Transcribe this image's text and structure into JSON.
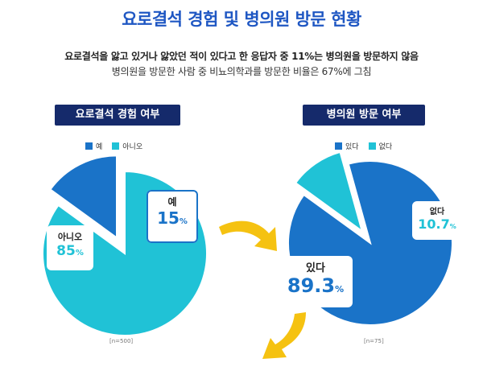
{
  "title_part1": "요로결석 경험 및",
  "title_part2": "병의원 방문 현황",
  "subtitle_line1": "요로결석을 앓고 있거나 앓았던 적이 있다고 한 응답자 중 11%는 병의원을 방문하지 않음",
  "subtitle_line2": "병의원을 방문한 사람 중 비뇨의학과를 방문한 비율은 67%에 그침",
  "colors": {
    "dark_blue": "#1a73c8",
    "cyan": "#20c2d6",
    "navy": "#152a6b",
    "arrow": "#f5c211"
  },
  "chart_data": [
    {
      "type": "pie",
      "title": "요로결석 경험 여부",
      "legend": [
        "예",
        "아니오"
      ],
      "slices": [
        {
          "label": "예",
          "value": 15,
          "display": "15",
          "unit": "%",
          "color": "#1a73c8"
        },
        {
          "label": "아니오",
          "value": 85,
          "display": "85",
          "unit": "%",
          "color": "#20c2d6"
        }
      ],
      "n_note": "[n=500]"
    },
    {
      "type": "pie",
      "title": "병의원 방문 여부",
      "legend": [
        "있다",
        "없다"
      ],
      "slices": [
        {
          "label": "있다",
          "value": 89.3,
          "display": "89.3",
          "unit": "%",
          "color": "#1a73c8"
        },
        {
          "label": "없다",
          "value": 10.7,
          "display": "10.7",
          "unit": "%",
          "color": "#20c2d6"
        }
      ],
      "n_note": "[n=75]"
    }
  ]
}
